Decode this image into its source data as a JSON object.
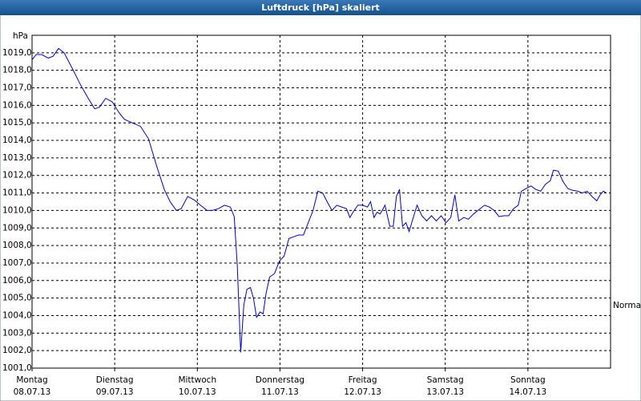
{
  "chart_data": {
    "type": "line",
    "title": "Luftdruck [hPa] skaliert",
    "ylabel": "hPa",
    "annotation": "Normal",
    "color": "#0000c8",
    "grid": true,
    "xlim": [
      0,
      168
    ],
    "ylim": [
      1001,
      1020
    ],
    "xticks": [
      {
        "value": 0,
        "label": "Montag",
        "date": "08.07.13"
      },
      {
        "value": 24,
        "label": "Dienstag",
        "date": "09.07.13"
      },
      {
        "value": 48,
        "label": "Mittwoch",
        "date": "10.07.13"
      },
      {
        "value": 72,
        "label": "Donnerstag",
        "date": "11.07.13"
      },
      {
        "value": 96,
        "label": "Freitag",
        "date": "12.07.13"
      },
      {
        "value": 120,
        "label": "Samstag",
        "date": "13.07.13"
      },
      {
        "value": 144,
        "label": "Sonntag",
        "date": "14.07.13"
      }
    ],
    "yticks": [
      {
        "value": 1001,
        "label": "1001,0"
      },
      {
        "value": 1002,
        "label": "1002,0"
      },
      {
        "value": 1003,
        "label": "1003,0"
      },
      {
        "value": 1004,
        "label": "1004,0"
      },
      {
        "value": 1005,
        "label": "1005,0"
      },
      {
        "value": 1006,
        "label": "1006,0"
      },
      {
        "value": 1007,
        "label": "1007,0"
      },
      {
        "value": 1008,
        "label": "1008,0"
      },
      {
        "value": 1009,
        "label": "1009,0"
      },
      {
        "value": 1010,
        "label": "1010,0"
      },
      {
        "value": 1011,
        "label": "1011,0"
      },
      {
        "value": 1012,
        "label": "1012,0"
      },
      {
        "value": 1013,
        "label": "1013,0"
      },
      {
        "value": 1014,
        "label": "1014,0"
      },
      {
        "value": 1015,
        "label": "1015,0"
      },
      {
        "value": 1016,
        "label": "1016,0"
      },
      {
        "value": 1017,
        "label": "1017,0"
      },
      {
        "value": 1018,
        "label": "1018,0"
      },
      {
        "value": 1019,
        "label": "1019,0"
      }
    ],
    "x": [
      0,
      1.2,
      2.8,
      4.7,
      6.1,
      7.7,
      9.3,
      11.7,
      14.0,
      16.3,
      18.2,
      19.6,
      21.4,
      23.3,
      25.2,
      26.8,
      29.1,
      31.5,
      33.8,
      36.1,
      38.4,
      40.1,
      41.9,
      43.3,
      45.2,
      47.1,
      48.9,
      50.8,
      52.4,
      54.1,
      55.9,
      57.6,
      58.7,
      59.6,
      60.6,
      61.5,
      62.4,
      63.4,
      64.3,
      65.2,
      66.2,
      67.1,
      68.0,
      69.0,
      70.4,
      71.8,
      73.2,
      74.6,
      76.0,
      77.4,
      78.8,
      80.2,
      81.6,
      83.0,
      84.4,
      85.7,
      87.1,
      88.5,
      89.9,
      91.3,
      92.3,
      93.2,
      94.6,
      96.0,
      97.4,
      98.3,
      99.3,
      100.2,
      101.1,
      102.5,
      103.9,
      104.9,
      105.8,
      106.7,
      107.6,
      108.6,
      109.5,
      110.4,
      111.8,
      113.2,
      114.6,
      116.0,
      117.4,
      118.8,
      120.2,
      121.6,
      122.8,
      123.9,
      125.4,
      126.7,
      128.2,
      129.5,
      131.4,
      132.8,
      134.2,
      135.6,
      137.0,
      138.4,
      139.8,
      141.2,
      142.1,
      143.5,
      144.9,
      146.3,
      147.7,
      149.1,
      150.5,
      151.4,
      152.8,
      154.2,
      155.6,
      157.0,
      158.4,
      159.8,
      161.2,
      162.6,
      164.0,
      165.0,
      165.9,
      166.8
    ],
    "values": [
      1018.6,
      1018.9,
      1018.9,
      1018.7,
      1018.8,
      1019.25,
      1019.0,
      1018.1,
      1017.2,
      1016.4,
      1015.8,
      1015.9,
      1016.4,
      1016.2,
      1015.6,
      1015.2,
      1015.0,
      1014.8,
      1014.1,
      1012.6,
      1011.2,
      1010.5,
      1010.0,
      1010.1,
      1010.8,
      1010.6,
      1010.3,
      1010.0,
      1010.0,
      1010.1,
      1010.3,
      1010.2,
      1009.65,
      1006.9,
      1001.9,
      1004.6,
      1005.5,
      1005.6,
      1005.0,
      1003.9,
      1004.2,
      1004.1,
      1005.3,
      1006.2,
      1006.4,
      1007.1,
      1007.4,
      1008.4,
      1008.5,
      1008.6,
      1008.6,
      1009.3,
      1010.0,
      1011.1,
      1011.0,
      1010.5,
      1010.0,
      1010.3,
      1010.2,
      1010.1,
      1009.6,
      1009.9,
      1010.3,
      1010.3,
      1010.2,
      1010.5,
      1009.6,
      1009.9,
      1009.8,
      1010.3,
      1009.1,
      1009.1,
      1010.8,
      1011.2,
      1009.1,
      1009.3,
      1008.8,
      1009.4,
      1010.3,
      1009.7,
      1009.4,
      1009.7,
      1009.4,
      1009.7,
      1009.3,
      1009.6,
      1010.9,
      1009.4,
      1009.6,
      1009.5,
      1009.8,
      1010.0,
      1010.3,
      1010.2,
      1010.0,
      1009.65,
      1009.7,
      1009.7,
      1010.1,
      1010.3,
      1011.1,
      1011.25,
      1011.4,
      1011.2,
      1011.1,
      1011.5,
      1011.7,
      1012.3,
      1012.25,
      1011.65,
      1011.25,
      1011.15,
      1011.1,
      1011.0,
      1011.1,
      1010.8,
      1010.55,
      1010.9,
      1011.1,
      1011.0
    ]
  }
}
